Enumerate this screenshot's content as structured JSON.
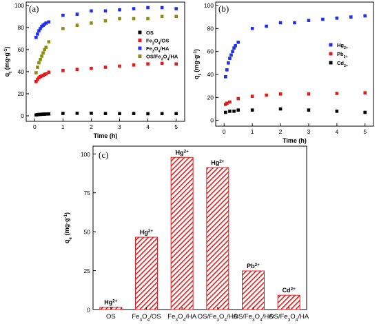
{
  "chart_data": [
    {
      "id": "a",
      "type": "scatter",
      "panel_label": "(a)",
      "xlabel": "Time (h)",
      "ylabel": "q",
      "ylabel_sub": "t",
      "ylabel_unit": " (mg·g",
      "ylabel_sup": "-1",
      "ylabel_close": ")",
      "xlim": [
        -0.3,
        5.3
      ],
      "ylim": [
        -5,
        103
      ],
      "xticks": [
        "0",
        "1",
        "2",
        "3",
        "4",
        "5"
      ],
      "yticks": [
        "0",
        "20",
        "40",
        "60",
        "80",
        "100"
      ],
      "legend_position": "right",
      "series": [
        {
          "legend": [
            "OS"
          ],
          "color": "#000000",
          "x": [
            0.05,
            0.1,
            0.15,
            0.2,
            0.25,
            0.3,
            0.35,
            0.4,
            0.5,
            1,
            1.5,
            2,
            2.5,
            3,
            3.5,
            4,
            4.5,
            5
          ],
          "y": [
            0.8,
            1,
            1.2,
            1.3,
            1.4,
            1.5,
            1.5,
            1.6,
            1.7,
            2.2,
            2.3,
            2.3,
            2.1,
            2.0,
            2.1,
            1.9,
            2.0,
            2.0
          ]
        },
        {
          "legend": [
            "Fe",
            "3",
            "O",
            "4",
            "/OS"
          ],
          "color": "#e31b1b",
          "x": [
            0.05,
            0.1,
            0.15,
            0.2,
            0.25,
            0.3,
            0.35,
            0.4,
            0.5,
            1,
            1.5,
            2,
            2.5,
            3,
            3.5,
            4,
            4.5,
            5
          ],
          "y": [
            31,
            33,
            34.5,
            35.5,
            36,
            36.5,
            37.5,
            38,
            39.5,
            41,
            42,
            43,
            44,
            45,
            46,
            47,
            47.5,
            47
          ]
        },
        {
          "legend": [
            "Fe",
            "3",
            "O",
            "4",
            "/HA"
          ],
          "color": "#1f2ef0",
          "x": [
            0.05,
            0.1,
            0.15,
            0.2,
            0.25,
            0.3,
            0.35,
            0.4,
            0.5,
            1,
            1.5,
            2,
            2.5,
            3,
            3.5,
            4,
            4.5,
            5
          ],
          "y": [
            71,
            74,
            77,
            79,
            81,
            82,
            83,
            84,
            85,
            91,
            92,
            95,
            95,
            96,
            97,
            98,
            98,
            97
          ]
        },
        {
          "legend": [
            "OS/Fe",
            "3",
            "O",
            "4",
            "/HA"
          ],
          "color": "#8c8c14",
          "x": [
            0.05,
            0.1,
            0.15,
            0.2,
            0.25,
            0.3,
            0.35,
            0.4,
            0.5,
            1,
            1.5,
            2,
            2.5,
            3,
            3.5,
            4,
            4.5,
            5
          ],
          "y": [
            39,
            44,
            48,
            51,
            54,
            57,
            60,
            62,
            67,
            79,
            82,
            84,
            86,
            88,
            88,
            88,
            90,
            90
          ]
        }
      ]
    },
    {
      "id": "b",
      "type": "scatter",
      "panel_label": "(b)",
      "xlabel": "Time (h)",
      "ylabel": "q",
      "ylabel_sub": "t",
      "ylabel_unit": " (mg·g",
      "ylabel_sup": "-1",
      "ylabel_close": ")",
      "xlim": [
        -0.3,
        5.3
      ],
      "ylim": [
        -5,
        103
      ],
      "xticks": [
        "0",
        "1",
        "2",
        "3",
        "4",
        "5"
      ],
      "yticks": [
        "0",
        "20",
        "40",
        "60",
        "80",
        "100"
      ],
      "legend_position": "right",
      "series": [
        {
          "legend": [
            "Hg",
            "2+"
          ],
          "color": "#1f2ef0",
          "x": [
            0.05,
            0.1,
            0.15,
            0.2,
            0.25,
            0.3,
            0.35,
            0.4,
            0.5,
            1,
            1.5,
            2,
            2.5,
            3,
            3.5,
            4,
            4.5,
            5
          ],
          "y": [
            38,
            44,
            50,
            54,
            57,
            60,
            63,
            65,
            68,
            80,
            82,
            85,
            85,
            87,
            88,
            89,
            90,
            91
          ]
        },
        {
          "legend": [
            "Pb",
            "2+"
          ],
          "color": "#e31b1b",
          "x": [
            0.05,
            0.1,
            0.2,
            0.5,
            1,
            1.5,
            2,
            3,
            4,
            5
          ],
          "y": [
            14,
            15,
            16,
            19,
            21,
            22,
            23,
            23,
            23.5,
            24
          ]
        },
        {
          "legend": [
            "Cd",
            "2+"
          ],
          "color": "#000000",
          "x": [
            0.05,
            0.2,
            0.35,
            0.5,
            1,
            2,
            3,
            4,
            5
          ],
          "y": [
            7,
            8,
            8,
            9,
            9,
            10,
            9,
            8,
            7
          ]
        }
      ]
    },
    {
      "id": "c",
      "type": "bar",
      "panel_label": "(c)",
      "ylabel": "q",
      "ylabel_sub": "e",
      "ylabel_unit": " (mg·g",
      "ylabel_sup": "-1",
      "ylabel_close": ")",
      "ylim": [
        0,
        105
      ],
      "yticks": [
        "0",
        "25",
        "50",
        "75",
        "100"
      ],
      "bar_color": "#e31b1b",
      "categories": [
        [
          "OS"
        ],
        [
          "Fe",
          "3",
          "O",
          "4",
          "/OS"
        ],
        [
          "Fe",
          "3",
          "O",
          "4",
          "/HA"
        ],
        [
          "OS/Fe",
          "3",
          "O",
          "4",
          "/HA"
        ],
        [
          "OS/Fe",
          "3",
          "O",
          "4",
          "/HA"
        ],
        [
          "OS/Fe",
          "3",
          "O",
          "4",
          "/HA"
        ]
      ],
      "values": [
        1.5,
        46.5,
        97.8,
        91.2,
        24.8,
        9.2
      ],
      "bar_labels": [
        [
          "Hg",
          "2+"
        ],
        [
          "Hg",
          "2+"
        ],
        [
          "Hg",
          "2+"
        ],
        [
          "Hg",
          "2+"
        ],
        [
          "Pb",
          "2+"
        ],
        [
          "Cd",
          "2+"
        ]
      ]
    }
  ]
}
